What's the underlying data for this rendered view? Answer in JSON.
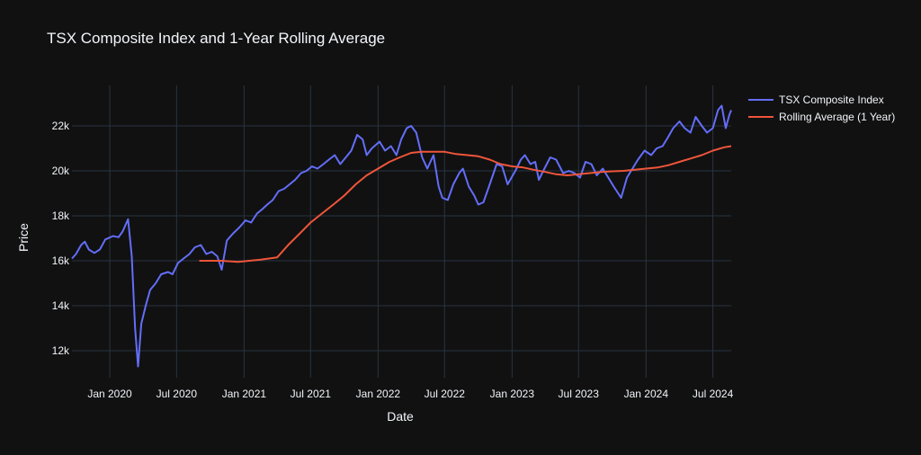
{
  "chart_data": {
    "type": "line",
    "title": "TSX Composite Index and 1-Year Rolling Average",
    "xlabel": "Date",
    "ylabel": "Price",
    "xlim": [
      "2019-09-20",
      "2024-08-20"
    ],
    "ylim": [
      10800,
      23800
    ],
    "x_ticks": [
      "2020-01-01",
      "2020-07-01",
      "2021-01-01",
      "2021-07-01",
      "2022-01-01",
      "2022-07-01",
      "2023-01-01",
      "2023-07-01",
      "2024-01-01",
      "2024-07-01"
    ],
    "x_tick_labels": [
      "Jan 2020",
      "Jul 2020",
      "Jan 2021",
      "Jul 2021",
      "Jan 2022",
      "Jul 2022",
      "Jan 2023",
      "Jul 2023",
      "Jan 2024",
      "Jul 2024"
    ],
    "y_ticks": [
      12000,
      14000,
      16000,
      18000,
      20000,
      22000
    ],
    "y_tick_labels": [
      "12k",
      "14k",
      "16k",
      "18k",
      "20k",
      "22k"
    ],
    "grid": true,
    "legend_position": "top-right",
    "colors": {
      "background": "#111111",
      "grid": "#283442",
      "text": "#f2f5fa"
    },
    "series": [
      {
        "name": "TSX Composite Index",
        "color": "#636efa",
        "points": [
          [
            "2019-09-20",
            16100
          ],
          [
            "2019-10-01",
            16300
          ],
          [
            "2019-10-15",
            16700
          ],
          [
            "2019-10-25",
            16850
          ],
          [
            "2019-11-05",
            16500
          ],
          [
            "2019-11-20",
            16350
          ],
          [
            "2019-12-05",
            16500
          ],
          [
            "2019-12-20",
            16950
          ],
          [
            "2020-01-10",
            17100
          ],
          [
            "2020-01-25",
            17050
          ],
          [
            "2020-02-05",
            17300
          ],
          [
            "2020-02-20",
            17850
          ],
          [
            "2020-03-01",
            16200
          ],
          [
            "2020-03-10",
            13000
          ],
          [
            "2020-03-18",
            11300
          ],
          [
            "2020-03-27",
            13200
          ],
          [
            "2020-04-08",
            14000
          ],
          [
            "2020-04-20",
            14700
          ],
          [
            "2020-05-05",
            15000
          ],
          [
            "2020-05-20",
            15400
          ],
          [
            "2020-06-08",
            15500
          ],
          [
            "2020-06-20",
            15400
          ],
          [
            "2020-07-05",
            15900
          ],
          [
            "2020-07-20",
            16100
          ],
          [
            "2020-08-05",
            16300
          ],
          [
            "2020-08-20",
            16600
          ],
          [
            "2020-09-05",
            16700
          ],
          [
            "2020-09-20",
            16300
          ],
          [
            "2020-10-05",
            16400
          ],
          [
            "2020-10-20",
            16200
          ],
          [
            "2020-11-01",
            15600
          ],
          [
            "2020-11-15",
            16900
          ],
          [
            "2020-12-01",
            17200
          ],
          [
            "2020-12-20",
            17500
          ],
          [
            "2021-01-05",
            17800
          ],
          [
            "2021-01-20",
            17700
          ],
          [
            "2021-02-05",
            18100
          ],
          [
            "2021-02-20",
            18300
          ],
          [
            "2021-03-05",
            18500
          ],
          [
            "2021-03-20",
            18700
          ],
          [
            "2021-04-05",
            19100
          ],
          [
            "2021-04-20",
            19200
          ],
          [
            "2021-05-05",
            19400
          ],
          [
            "2021-05-20",
            19600
          ],
          [
            "2021-06-05",
            19900
          ],
          [
            "2021-06-20",
            20000
          ],
          [
            "2021-07-05",
            20200
          ],
          [
            "2021-07-20",
            20100
          ],
          [
            "2021-08-05",
            20300
          ],
          [
            "2021-08-20",
            20500
          ],
          [
            "2021-09-05",
            20700
          ],
          [
            "2021-09-20",
            20300
          ],
          [
            "2021-10-05",
            20600
          ],
          [
            "2021-10-20",
            20900
          ],
          [
            "2021-11-05",
            21600
          ],
          [
            "2021-11-20",
            21400
          ],
          [
            "2021-12-01",
            20700
          ],
          [
            "2021-12-15",
            21000
          ],
          [
            "2022-01-05",
            21300
          ],
          [
            "2022-01-20",
            20900
          ],
          [
            "2022-02-05",
            21100
          ],
          [
            "2022-02-20",
            20700
          ],
          [
            "2022-03-05",
            21400
          ],
          [
            "2022-03-20",
            21900
          ],
          [
            "2022-04-01",
            22000
          ],
          [
            "2022-04-15",
            21700
          ],
          [
            "2022-05-01",
            20600
          ],
          [
            "2022-05-15",
            20100
          ],
          [
            "2022-06-01",
            20700
          ],
          [
            "2022-06-15",
            19300
          ],
          [
            "2022-06-25",
            18800
          ],
          [
            "2022-07-10",
            18700
          ],
          [
            "2022-07-25",
            19400
          ],
          [
            "2022-08-10",
            19900
          ],
          [
            "2022-08-20",
            20100
          ],
          [
            "2022-09-05",
            19300
          ],
          [
            "2022-09-20",
            18900
          ],
          [
            "2022-10-01",
            18500
          ],
          [
            "2022-10-15",
            18600
          ],
          [
            "2022-11-01",
            19400
          ],
          [
            "2022-11-20",
            20300
          ],
          [
            "2022-12-05",
            20200
          ],
          [
            "2022-12-20",
            19400
          ],
          [
            "2023-01-10",
            20000
          ],
          [
            "2023-01-25",
            20500
          ],
          [
            "2023-02-05",
            20700
          ],
          [
            "2023-02-20",
            20300
          ],
          [
            "2023-03-05",
            20400
          ],
          [
            "2023-03-15",
            19600
          ],
          [
            "2023-03-30",
            20100
          ],
          [
            "2023-04-15",
            20600
          ],
          [
            "2023-05-01",
            20500
          ],
          [
            "2023-05-20",
            19900
          ],
          [
            "2023-06-05",
            20000
          ],
          [
            "2023-06-20",
            19900
          ],
          [
            "2023-07-05",
            19700
          ],
          [
            "2023-07-20",
            20400
          ],
          [
            "2023-08-05",
            20300
          ],
          [
            "2023-08-20",
            19800
          ],
          [
            "2023-09-05",
            20100
          ],
          [
            "2023-09-20",
            19700
          ],
          [
            "2023-10-05",
            19300
          ],
          [
            "2023-10-25",
            18800
          ],
          [
            "2023-11-10",
            19700
          ],
          [
            "2023-11-25",
            20100
          ],
          [
            "2023-12-10",
            20500
          ],
          [
            "2023-12-28",
            20900
          ],
          [
            "2024-01-15",
            20700
          ],
          [
            "2024-01-30",
            21000
          ],
          [
            "2024-02-15",
            21100
          ],
          [
            "2024-03-01",
            21500
          ],
          [
            "2024-03-15",
            21900
          ],
          [
            "2024-04-01",
            22200
          ],
          [
            "2024-04-15",
            21900
          ],
          [
            "2024-05-01",
            21700
          ],
          [
            "2024-05-15",
            22400
          ],
          [
            "2024-06-01",
            22000
          ],
          [
            "2024-06-15",
            21700
          ],
          [
            "2024-07-01",
            21900
          ],
          [
            "2024-07-15",
            22700
          ],
          [
            "2024-07-25",
            22900
          ],
          [
            "2024-08-05",
            21900
          ],
          [
            "2024-08-15",
            22500
          ],
          [
            "2024-08-20",
            22700
          ]
        ]
      },
      {
        "name": "Rolling Average (1 Year)",
        "color": "#ef553b",
        "points": [
          [
            "2020-09-01",
            16000
          ],
          [
            "2020-11-01",
            16000
          ],
          [
            "2020-12-15",
            15950
          ],
          [
            "2021-02-15",
            16050
          ],
          [
            "2021-04-01",
            16150
          ],
          [
            "2021-05-01",
            16700
          ],
          [
            "2021-06-01",
            17200
          ],
          [
            "2021-07-01",
            17700
          ],
          [
            "2021-08-01",
            18100
          ],
          [
            "2021-09-01",
            18500
          ],
          [
            "2021-10-01",
            18900
          ],
          [
            "2021-11-01",
            19400
          ],
          [
            "2021-12-01",
            19800
          ],
          [
            "2022-01-01",
            20100
          ],
          [
            "2022-02-01",
            20400
          ],
          [
            "2022-03-01",
            20600
          ],
          [
            "2022-04-01",
            20800
          ],
          [
            "2022-05-01",
            20850
          ],
          [
            "2022-06-01",
            20850
          ],
          [
            "2022-07-01",
            20850
          ],
          [
            "2022-08-01",
            20750
          ],
          [
            "2022-09-01",
            20700
          ],
          [
            "2022-10-01",
            20650
          ],
          [
            "2022-11-01",
            20500
          ],
          [
            "2022-12-01",
            20300
          ],
          [
            "2023-01-01",
            20200
          ],
          [
            "2023-02-01",
            20150
          ],
          [
            "2023-03-01",
            20050
          ],
          [
            "2023-04-01",
            19950
          ],
          [
            "2023-05-01",
            19850
          ],
          [
            "2023-06-01",
            19800
          ],
          [
            "2023-07-01",
            19850
          ],
          [
            "2023-08-01",
            19900
          ],
          [
            "2023-09-01",
            19950
          ],
          [
            "2023-10-01",
            19980
          ],
          [
            "2023-11-01",
            20000
          ],
          [
            "2023-12-01",
            20050
          ],
          [
            "2024-01-01",
            20100
          ],
          [
            "2024-02-01",
            20150
          ],
          [
            "2024-03-01",
            20250
          ],
          [
            "2024-04-01",
            20400
          ],
          [
            "2024-05-01",
            20550
          ],
          [
            "2024-06-01",
            20700
          ],
          [
            "2024-07-01",
            20900
          ],
          [
            "2024-08-01",
            21050
          ],
          [
            "2024-08-20",
            21100
          ]
        ]
      }
    ]
  }
}
